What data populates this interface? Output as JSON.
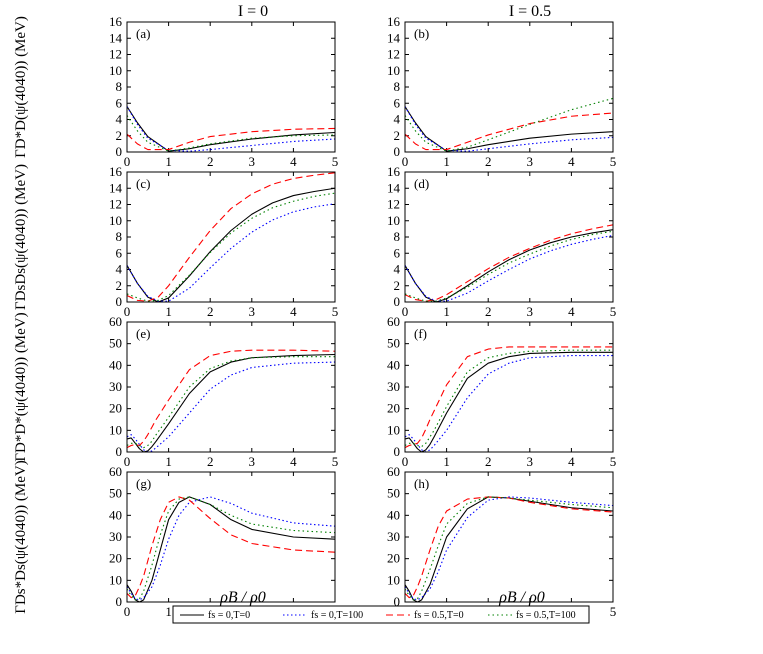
{
  "column_titles": [
    "I = 0",
    "I = 0.5"
  ],
  "xlabel": "ρB / ρ0",
  "row_ylabels": [
    "ΓD*D(ψ(4040)) (MeV)",
    "ΓDsDs(ψ(4040)) (MeV)",
    "ΓD*D*(ψ(4040)) (MeV)",
    "ΓDs*Ds(ψ(4040)) (MeV)"
  ],
  "panel_labels": [
    "(a)",
    "(b)",
    "(c)",
    "(d)",
    "(e)",
    "(f)",
    "(g)",
    "(h)"
  ],
  "legend": [
    {
      "label": "fs = 0,T=0",
      "color": "#000000",
      "dash": "solid"
    },
    {
      "label": "fs = 0,T=100",
      "color": "#0000ff",
      "dash": "dotted"
    },
    {
      "label": "fs = 0.5,T=0",
      "color": "#ff0000",
      "dash": "dashed"
    },
    {
      "label": "fs = 0.5,T=100",
      "color": "#008000",
      "dash": "dashdot"
    }
  ],
  "chart_data": [
    {
      "type": "line",
      "panel": "(a)",
      "x": [
        0,
        0.25,
        0.5,
        1,
        1.5,
        2,
        3,
        4,
        5
      ],
      "xlim": [
        0,
        5
      ],
      "ylim": [
        0,
        16
      ],
      "series": [
        {
          "name": "fs = 0,T=0",
          "values": [
            5.6,
            3.6,
            1.9,
            0.1,
            0.4,
            0.9,
            1.6,
            2.1,
            2.4
          ]
        },
        {
          "name": "fs = 0,T=100",
          "values": [
            5.6,
            3.4,
            1.7,
            0.2,
            0.1,
            0.3,
            0.8,
            1.3,
            1.6
          ]
        },
        {
          "name": "fs = 0.5,T=0",
          "values": [
            2.2,
            1.0,
            0.3,
            0.3,
            1.2,
            1.9,
            2.5,
            2.8,
            2.9
          ]
        },
        {
          "name": "fs = 0.5,T=100",
          "values": [
            4.5,
            2.6,
            1.2,
            0.1,
            0.5,
            1.0,
            1.7,
            2.0,
            2.1
          ]
        }
      ]
    },
    {
      "type": "line",
      "panel": "(b)",
      "x": [
        0,
        0.25,
        0.5,
        1,
        1.5,
        2,
        3,
        4,
        5
      ],
      "xlim": [
        0,
        5
      ],
      "ylim": [
        0,
        16
      ],
      "series": [
        {
          "name": "fs = 0,T=0",
          "values": [
            5.6,
            3.6,
            1.9,
            0.1,
            0.4,
            0.9,
            1.7,
            2.2,
            2.5
          ]
        },
        {
          "name": "fs = 0,T=100",
          "values": [
            5.6,
            3.4,
            1.7,
            0.2,
            0.1,
            0.4,
            1.0,
            1.5,
            1.8
          ]
        },
        {
          "name": "fs = 0.5,T=0",
          "values": [
            2.2,
            1.0,
            0.3,
            0.3,
            1.2,
            2.1,
            3.5,
            4.4,
            4.8
          ]
        },
        {
          "name": "fs = 0.5,T=100",
          "values": [
            4.5,
            2.6,
            1.2,
            0.1,
            0.6,
            1.5,
            3.4,
            5.2,
            6.6
          ]
        }
      ]
    },
    {
      "type": "line",
      "panel": "(c)",
      "x": [
        0,
        0.25,
        0.5,
        0.75,
        1,
        1.5,
        2,
        2.5,
        3,
        3.5,
        4,
        4.5,
        5
      ],
      "xlim": [
        0,
        5
      ],
      "ylim": [
        0,
        16
      ],
      "series": [
        {
          "name": "fs = 0,T=0",
          "values": [
            4.5,
            2.3,
            0.6,
            0,
            0.5,
            3.2,
            6.2,
            8.8,
            10.8,
            12.2,
            13.1,
            13.6,
            14.0
          ]
        },
        {
          "name": "fs = 0,T=100",
          "values": [
            4.5,
            2.3,
            0.7,
            0.1,
            0.1,
            1.7,
            4.2,
            6.6,
            8.6,
            10.1,
            11.1,
            11.7,
            12.1
          ]
        },
        {
          "name": "fs = 0.5,T=0",
          "values": [
            0.8,
            0.2,
            0.1,
            0.6,
            2.0,
            5.5,
            8.8,
            11.5,
            13.3,
            14.5,
            15.2,
            15.6,
            15.9
          ]
        },
        {
          "name": "fs = 0.5,T=100",
          "values": [
            1.0,
            0.5,
            0.1,
            0.2,
            0.8,
            3.3,
            6.1,
            8.5,
            10.3,
            11.6,
            12.4,
            13.0,
            13.4
          ]
        }
      ]
    },
    {
      "type": "line",
      "panel": "(d)",
      "x": [
        0,
        0.25,
        0.5,
        0.75,
        1,
        1.5,
        2,
        2.5,
        3,
        3.5,
        4,
        4.5,
        5
      ],
      "xlim": [
        0,
        5
      ],
      "ylim": [
        0,
        16
      ],
      "series": [
        {
          "name": "fs = 0,T=0",
          "values": [
            4.5,
            2.3,
            0.6,
            0,
            0.4,
            2.0,
            3.7,
            5.2,
            6.4,
            7.3,
            8.0,
            8.5,
            8.9
          ]
        },
        {
          "name": "fs = 0,T=100",
          "values": [
            4.5,
            2.3,
            0.7,
            0.1,
            0.1,
            1.1,
            2.6,
            4.0,
            5.3,
            6.3,
            7.1,
            7.7,
            8.2
          ]
        },
        {
          "name": "fs = 0.5,T=0",
          "values": [
            0.9,
            0.3,
            0.1,
            0.3,
            0.9,
            2.5,
            4.1,
            5.5,
            6.6,
            7.6,
            8.4,
            9.0,
            9.5
          ]
        },
        {
          "name": "fs = 0.5,T=100",
          "values": [
            1.0,
            0.5,
            0.1,
            0.1,
            0.5,
            1.8,
            3.4,
            4.8,
            5.9,
            6.9,
            7.7,
            8.3,
            8.7
          ]
        }
      ]
    },
    {
      "type": "line",
      "panel": "(e)",
      "x": [
        0,
        0.1,
        0.2,
        0.3,
        0.4,
        0.5,
        0.6,
        0.7,
        1,
        1.5,
        2,
        2.5,
        3,
        4,
        5
      ],
      "xlim": [
        0,
        5
      ],
      "ylim": [
        0,
        60
      ],
      "series": [
        {
          "name": "fs = 0,T=0",
          "values": [
            6,
            6.5,
            4,
            1.5,
            0,
            0.5,
            2.5,
            5,
            13,
            27,
            37,
            41.5,
            43.5,
            44.5,
            45
          ]
        },
        {
          "name": "fs = 0,T=100",
          "values": [
            7,
            8,
            6,
            3.5,
            1,
            0,
            0.5,
            2,
            7,
            18,
            29,
            35.5,
            39,
            41,
            41.5
          ]
        },
        {
          "name": "fs = 0.5,T=0",
          "values": [
            2,
            3,
            3.5,
            3,
            5,
            8,
            11.5,
            15,
            24,
            38,
            44.5,
            46.5,
            47,
            47,
            46.5
          ]
        },
        {
          "name": "fs = 0.5,T=100",
          "values": [
            3,
            4,
            4,
            3,
            2,
            3,
            5,
            8,
            16,
            30,
            38.5,
            42,
            43.5,
            44,
            44
          ]
        }
      ]
    },
    {
      "type": "line",
      "panel": "(f)",
      "x": [
        0,
        0.1,
        0.2,
        0.3,
        0.4,
        0.5,
        0.6,
        0.7,
        1,
        1.5,
        2,
        2.5,
        3,
        4,
        5
      ],
      "xlim": [
        0,
        5
      ],
      "ylim": [
        0,
        60
      ],
      "series": [
        {
          "name": "fs = 0,T=0",
          "values": [
            6,
            6.5,
            4,
            1.5,
            0,
            1,
            3.5,
            7,
            18,
            34,
            41,
            44,
            45.5,
            46,
            46
          ]
        },
        {
          "name": "fs = 0,T=100",
          "values": [
            7,
            8,
            6,
            3.5,
            1,
            0,
            1,
            3,
            10,
            25,
            36,
            41,
            43.5,
            44.5,
            44.5
          ]
        },
        {
          "name": "fs = 0.5,T=0",
          "values": [
            2,
            3,
            3.5,
            4,
            6.5,
            10.5,
            15,
            19,
            31,
            44,
            47.5,
            48.5,
            48.5,
            48.5,
            48.5
          ]
        },
        {
          "name": "fs = 0.5,T=100",
          "values": [
            3,
            4,
            4,
            3,
            2.5,
            4,
            7,
            10,
            21,
            37,
            43.5,
            45.5,
            46.5,
            47,
            47
          ]
        }
      ]
    },
    {
      "type": "line",
      "panel": "(g)",
      "x": [
        0,
        0.1,
        0.2,
        0.3,
        0.4,
        0.6,
        0.8,
        1,
        1.25,
        1.5,
        2,
        2.5,
        3,
        4,
        5
      ],
      "xlim": [
        0,
        5
      ],
      "ylim": [
        0,
        60
      ],
      "series": [
        {
          "name": "fs = 0,T=0",
          "values": [
            8,
            5,
            1,
            0,
            1,
            10,
            24,
            38,
            46,
            48.5,
            45,
            38,
            33.5,
            30,
            29
          ]
        },
        {
          "name": "fs = 0,T=100",
          "values": [
            7,
            4,
            1.5,
            1,
            2,
            7,
            17,
            29,
            40,
            46,
            48.5,
            45.5,
            41,
            36.5,
            35
          ]
        },
        {
          "name": "fs = 0.5,T=0",
          "values": [
            4,
            2,
            3,
            7,
            12,
            26,
            38,
            46,
            48.5,
            47,
            38.5,
            31,
            27,
            24,
            23
          ]
        },
        {
          "name": "fs = 0.5,T=100",
          "values": [
            6,
            3,
            1,
            1.5,
            5,
            17,
            31,
            42,
            47.5,
            48.5,
            45,
            40,
            36,
            33,
            32
          ]
        }
      ]
    },
    {
      "type": "line",
      "panel": "(h)",
      "x": [
        0,
        0.1,
        0.2,
        0.3,
        0.4,
        0.6,
        0.8,
        1,
        1.5,
        2,
        2.5,
        3,
        4,
        5
      ],
      "xlim": [
        0,
        5
      ],
      "ylim": [
        0,
        60
      ],
      "series": [
        {
          "name": "fs = 0,T=0",
          "values": [
            8,
            5,
            1,
            0,
            1,
            8,
            19,
            30,
            43,
            48.5,
            48,
            46.5,
            43.5,
            42
          ]
        },
        {
          "name": "fs = 0,T=100",
          "values": [
            7,
            4,
            1.5,
            1,
            2,
            6,
            14,
            24,
            39,
            47,
            48.5,
            48,
            46,
            44.5
          ]
        },
        {
          "name": "fs = 0.5,T=0",
          "values": [
            4,
            2,
            3,
            7,
            12,
            24,
            35,
            42,
            47.5,
            48.5,
            48,
            46,
            43,
            41.5
          ]
        },
        {
          "name": "fs = 0.5,T=100",
          "values": [
            6,
            3,
            1,
            1.5,
            5,
            15,
            26,
            36,
            45.5,
            48.5,
            48,
            47,
            45,
            43.5
          ]
        }
      ]
    }
  ]
}
